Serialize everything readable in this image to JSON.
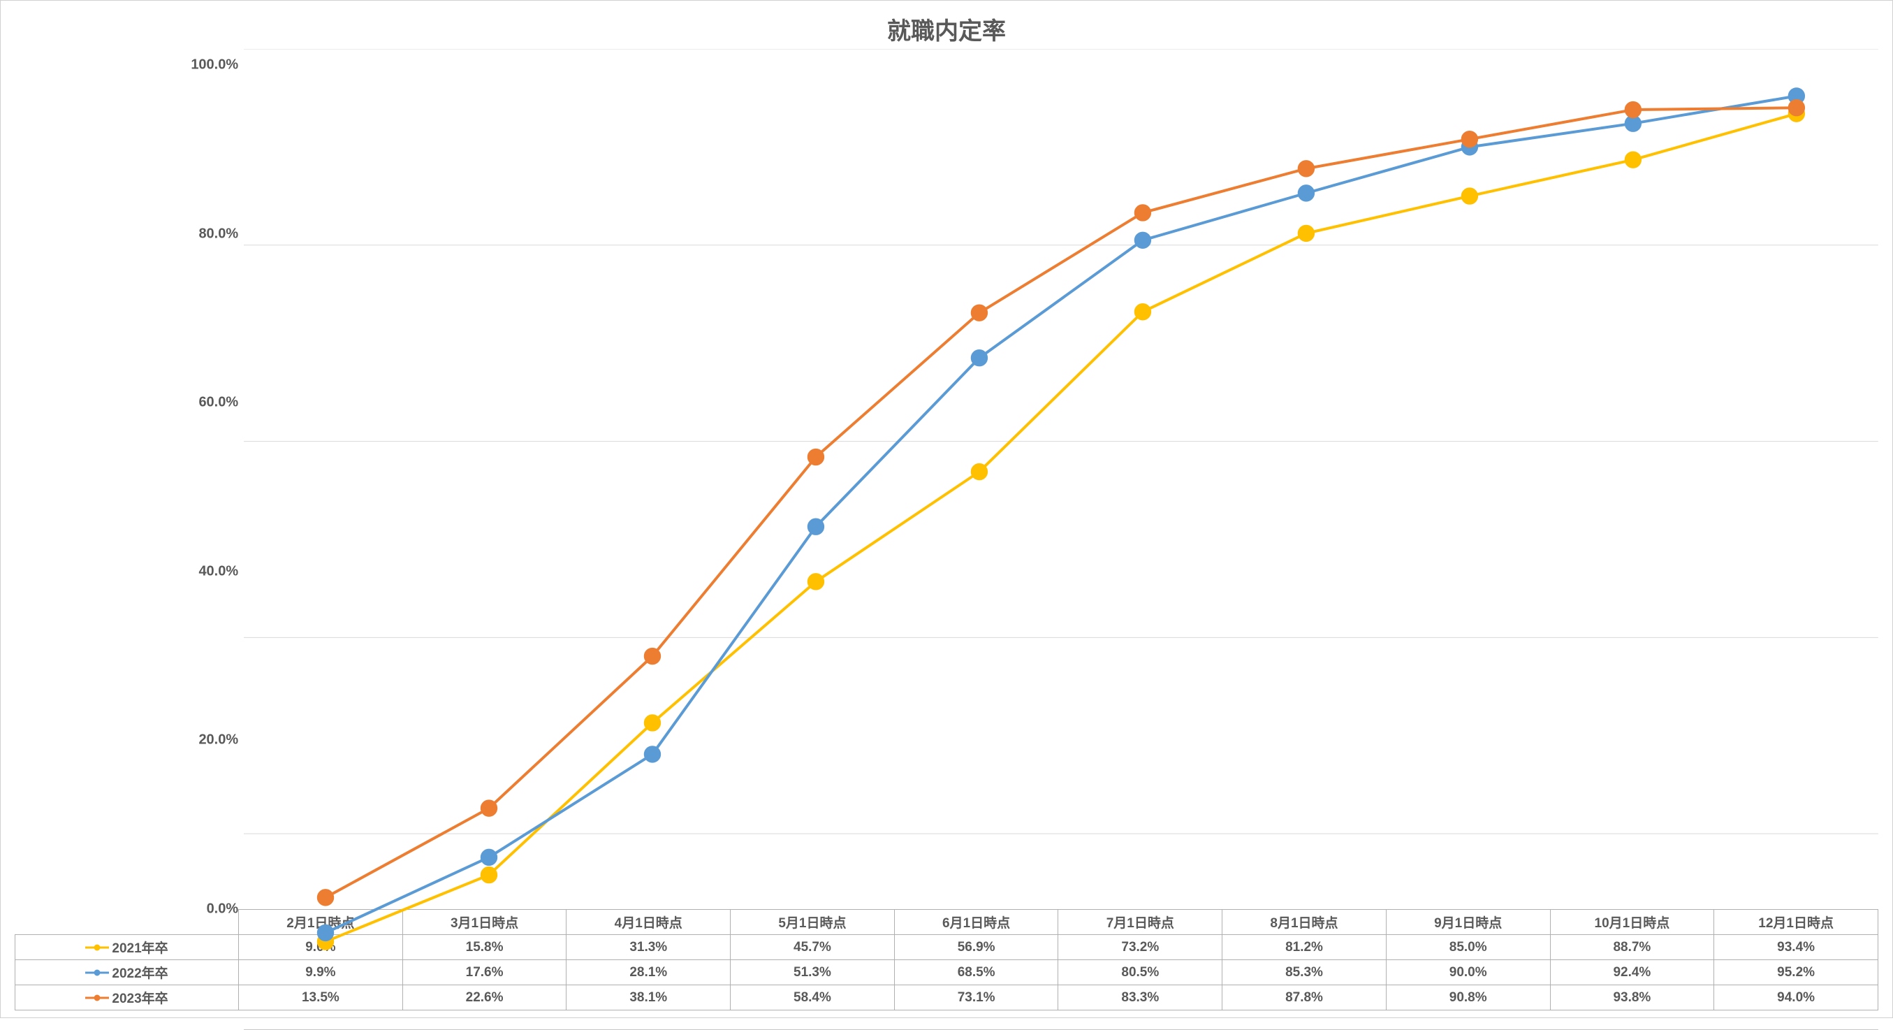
{
  "chart": {
    "type": "line",
    "title": "就職内定率",
    "title_fontsize": 34,
    "axis_label_fontsize": 20,
    "table_fontsize": 19,
    "background_color": "#ffffff",
    "border_color": "#d0d0d0",
    "grid_color": "#d9d9d9",
    "axis_line_color": "#bfbfbf",
    "text_color": "#595959",
    "line_width": 4,
    "marker_size": 10,
    "marker_style": "circle",
    "ylim": [
      0,
      100
    ],
    "ytick_step": 20,
    "ytick_labels": [
      "0.0%",
      "20.0%",
      "40.0%",
      "60.0%",
      "80.0%",
      "100.0%"
    ],
    "categories": [
      "2月1日時点",
      "3月1日時点",
      "4月1日時点",
      "5月1日時点",
      "6月1日時点",
      "7月1日時点",
      "8月1日時点",
      "9月1日時点",
      "10月1日時点",
      "12月1日時点"
    ],
    "series": [
      {
        "name": "2021年卒",
        "color": "#ffc000",
        "marker_fill": "#ffc000",
        "marker_stroke": "#ffc000",
        "values": [
          9.0,
          15.8,
          31.3,
          45.7,
          56.9,
          73.2,
          81.2,
          85.0,
          88.7,
          93.4
        ],
        "labels": [
          "9.0%",
          "15.8%",
          "31.3%",
          "45.7%",
          "56.9%",
          "73.2%",
          "81.2%",
          "85.0%",
          "88.7%",
          "93.4%"
        ]
      },
      {
        "name": "2022年卒",
        "color": "#5b9bd5",
        "marker_fill": "#5b9bd5",
        "marker_stroke": "#5b9bd5",
        "values": [
          9.9,
          17.6,
          28.1,
          51.3,
          68.5,
          80.5,
          85.3,
          90.0,
          92.4,
          95.2
        ],
        "labels": [
          "9.9%",
          "17.6%",
          "28.1%",
          "51.3%",
          "68.5%",
          "80.5%",
          "85.3%",
          "90.0%",
          "92.4%",
          "95.2%"
        ]
      },
      {
        "name": "2023年卒",
        "color": "#ed7d31",
        "marker_fill": "#ed7d31",
        "marker_stroke": "#ed7d31",
        "values": [
          13.5,
          22.6,
          38.1,
          58.4,
          73.1,
          83.3,
          87.8,
          90.8,
          93.8,
          94.0
        ],
        "labels": [
          "13.5%",
          "22.6%",
          "38.1%",
          "58.4%",
          "73.1%",
          "83.3%",
          "87.8%",
          "90.8%",
          "93.8%",
          "94.0%"
        ]
      }
    ],
    "legend_position": "bottom-table",
    "row_header_col_width_pct": 12
  }
}
